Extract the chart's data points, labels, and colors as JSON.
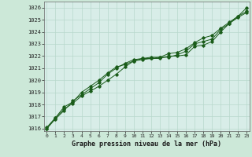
{
  "xlabel_label": "Graphe pression niveau de la mer (hPa)",
  "background_color": "#cce8d8",
  "plot_bg_color": "#d8ede8",
  "grid_color": "#b8d8cc",
  "line_color": "#1a5c1a",
  "x_ticks": [
    0,
    1,
    2,
    3,
    4,
    5,
    6,
    7,
    8,
    9,
    10,
    11,
    12,
    13,
    14,
    15,
    16,
    17,
    18,
    19,
    20,
    21,
    22,
    23
  ],
  "ylim": [
    1015.8,
    1026.5
  ],
  "xlim": [
    -0.3,
    23.3
  ],
  "yticks": [
    1016,
    1017,
    1018,
    1019,
    1020,
    1021,
    1022,
    1023,
    1024,
    1025,
    1026
  ],
  "series1": [
    1016.1,
    1016.9,
    1017.6,
    1018.1,
    1018.7,
    1019.1,
    1019.5,
    1020.0,
    1020.5,
    1021.1,
    1021.6,
    1021.7,
    1021.8,
    1021.8,
    1022.0,
    1022.0,
    1022.1,
    1022.8,
    1022.9,
    1023.2,
    1024.0,
    1024.7,
    1025.3,
    1025.7
  ],
  "series2": [
    1016.0,
    1016.8,
    1017.5,
    1018.3,
    1018.8,
    1019.3,
    1019.8,
    1020.5,
    1021.0,
    1021.4,
    1021.7,
    1021.8,
    1021.8,
    1021.9,
    1021.9,
    1022.1,
    1022.4,
    1023.0,
    1023.2,
    1023.4,
    1024.2,
    1024.7,
    1025.2,
    1025.6
  ],
  "series3": [
    1016.0,
    1016.9,
    1017.8,
    1018.2,
    1019.0,
    1019.5,
    1020.0,
    1020.6,
    1021.1,
    1021.3,
    1021.6,
    1021.8,
    1021.9,
    1021.9,
    1022.2,
    1022.3,
    1022.6,
    1023.1,
    1023.5,
    1023.7,
    1024.3,
    1024.8,
    1025.3,
    1026.0
  ]
}
